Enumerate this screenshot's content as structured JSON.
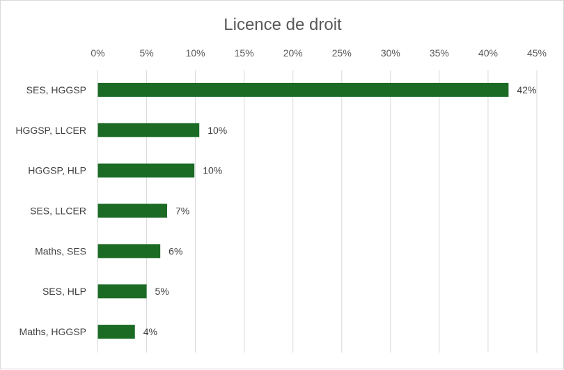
{
  "chart_data": {
    "type": "bar",
    "orientation": "horizontal",
    "title": "Licence de droit",
    "xlabel": "",
    "ylabel": "",
    "xlim": [
      0,
      45
    ],
    "x_ticks": [
      "0%",
      "5%",
      "10%",
      "15%",
      "20%",
      "25%",
      "30%",
      "35%",
      "40%",
      "45%"
    ],
    "x_tick_values": [
      0,
      5,
      10,
      15,
      20,
      25,
      30,
      35,
      40,
      45
    ],
    "axis_position": "top",
    "grid": true,
    "legend": "none",
    "categories": [
      "SES, HGGSP",
      "HGGSP, LLCER",
      "HGGSP, HLP",
      "SES, LLCER",
      "Maths, SES",
      "SES, HLP",
      "Maths, HGGSP"
    ],
    "values": [
      42.1,
      10.4,
      9.9,
      7.1,
      6.4,
      5.0,
      3.8
    ],
    "data_labels": [
      "42%",
      "10%",
      "10%",
      "7%",
      "6%",
      "5%",
      "4%"
    ],
    "bar_color": "#1b6b25"
  }
}
